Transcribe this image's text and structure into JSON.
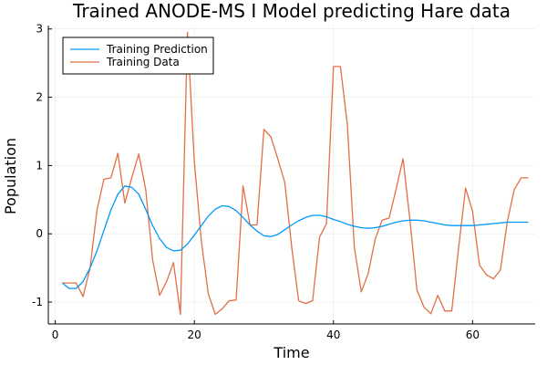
{
  "chart_data": {
    "type": "line",
    "title": "Trained ANODE-MS I Model predicting Hare data",
    "xlabel": "Time",
    "ylabel": "Population",
    "xlim": [
      -1,
      69
    ],
    "ylim": [
      -1.32,
      3.05
    ],
    "xticks": [
      0,
      20,
      40,
      60
    ],
    "yticks": [
      -1,
      0,
      1,
      2,
      3
    ],
    "x_tick_labels": [
      "0",
      "20",
      "40",
      "60"
    ],
    "y_tick_labels": [
      "-1",
      "0",
      "1",
      "2",
      "3"
    ],
    "grid": true,
    "legend_position": "top-left",
    "series": [
      {
        "name": "Training Prediction",
        "color": "#009AFA",
        "x": [
          1,
          2,
          3,
          4,
          5,
          6,
          7,
          8,
          9,
          10,
          11,
          12,
          13,
          14,
          15,
          16,
          17,
          18,
          19,
          20,
          21,
          22,
          23,
          24,
          25,
          26,
          27,
          28,
          29,
          30,
          31,
          32,
          33,
          34,
          35,
          36,
          37,
          38,
          39,
          40,
          41,
          42,
          43,
          44,
          45,
          46,
          47,
          48,
          49,
          50,
          51,
          52,
          53,
          54,
          55,
          56,
          57,
          58,
          59,
          60,
          61,
          62,
          63,
          64,
          65,
          66,
          67,
          68
        ],
        "y": [
          -0.72,
          -0.8,
          -0.8,
          -0.7,
          -0.5,
          -0.25,
          0.05,
          0.35,
          0.58,
          0.7,
          0.68,
          0.58,
          0.36,
          0.12,
          -0.07,
          -0.2,
          -0.25,
          -0.24,
          -0.15,
          -0.02,
          0.12,
          0.26,
          0.36,
          0.41,
          0.4,
          0.34,
          0.24,
          0.13,
          0.04,
          -0.03,
          -0.04,
          -0.01,
          0.06,
          0.13,
          0.19,
          0.24,
          0.27,
          0.27,
          0.25,
          0.21,
          0.18,
          0.14,
          0.11,
          0.09,
          0.08,
          0.09,
          0.11,
          0.14,
          0.17,
          0.19,
          0.2,
          0.2,
          0.19,
          0.17,
          0.15,
          0.13,
          0.12,
          0.12,
          0.12,
          0.12,
          0.13,
          0.14,
          0.15,
          0.16,
          0.17,
          0.17,
          0.17,
          0.17
        ]
      },
      {
        "name": "Training Data",
        "color": "#E26F46",
        "x": [
          1,
          2,
          3,
          4,
          5,
          6,
          7,
          8,
          9,
          10,
          11,
          12,
          13,
          14,
          15,
          16,
          17,
          18,
          19,
          20,
          21,
          22,
          23,
          24,
          25,
          26,
          27,
          28,
          29,
          30,
          31,
          32,
          33,
          34,
          35,
          36,
          37,
          38,
          39,
          40,
          41,
          42,
          43,
          44,
          45,
          46,
          47,
          48,
          49,
          50,
          51,
          52,
          53,
          54,
          55,
          56,
          57,
          58,
          59,
          60,
          61,
          62,
          63,
          64,
          65,
          66,
          67,
          68
        ],
        "y": [
          -0.72,
          -0.72,
          -0.72,
          -0.92,
          -0.5,
          0.35,
          0.8,
          0.82,
          1.18,
          0.45,
          0.82,
          1.17,
          0.65,
          -0.38,
          -0.9,
          -0.7,
          -0.42,
          -1.18,
          2.95,
          1.05,
          -0.1,
          -0.88,
          -1.18,
          -1.1,
          -0.98,
          -0.97,
          0.7,
          0.13,
          0.13,
          1.53,
          1.42,
          1.1,
          0.75,
          -0.2,
          -0.98,
          -1.02,
          -0.98,
          -0.05,
          0.15,
          2.45,
          2.45,
          1.6,
          -0.2,
          -0.85,
          -0.58,
          -0.08,
          0.2,
          0.23,
          0.65,
          1.1,
          0.2,
          -0.82,
          -1.07,
          -1.17,
          -0.9,
          -1.13,
          -1.13,
          -0.2,
          0.67,
          0.33,
          -0.46,
          -0.6,
          -0.66,
          -0.53,
          0.18,
          0.65,
          0.82,
          0.82
        ]
      }
    ]
  }
}
